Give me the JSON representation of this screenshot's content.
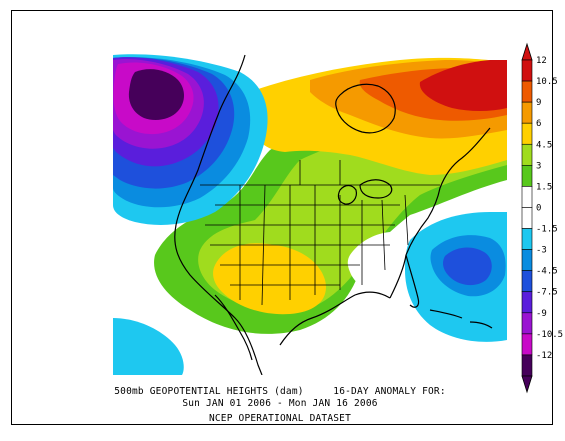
{
  "caption": {
    "line1": "500mb GEOPOTENTIAL HEIGHTS (dam)     16-DAY ANOMALY FOR:",
    "line2": "Sun JAN 01 2006 - Mon JAN 16 2006",
    "line3": "NCEP OPERATIONAL DATASET"
  },
  "colorbar": {
    "levels": [
      {
        "label": "12",
        "color": "#d01010"
      },
      {
        "label": "10.5",
        "color": "#ee5a00"
      },
      {
        "label": "9",
        "color": "#f59a00"
      },
      {
        "label": "6",
        "color": "#ffd000"
      },
      {
        "label": "4.5",
        "color": "#a0dc1e"
      },
      {
        "label": "3",
        "color": "#58c81c"
      },
      {
        "label": "1.5",
        "color": "#ffffff"
      },
      {
        "label": "0",
        "color": "#ffffff"
      },
      {
        "label": "-1.5",
        "color": "#1ec8f0"
      },
      {
        "label": "-3",
        "color": "#0a8ce0"
      },
      {
        "label": "-4.5",
        "color": "#1e50dc"
      },
      {
        "label": "-7.5",
        "color": "#5a1edc"
      },
      {
        "label": "-9",
        "color": "#9a14d2"
      },
      {
        "label": "-10.5",
        "color": "#c80ac8"
      },
      {
        "label": "-12",
        "color": "#46005a"
      }
    ]
  },
  "colors": {
    "strong_positive": "#d01010",
    "positive": "#f59a00",
    "weak_positive": "#58c81c",
    "weak_negative": "#1ec8f0",
    "negative": "#0a8ce0",
    "strong_negative": "#46005a"
  }
}
